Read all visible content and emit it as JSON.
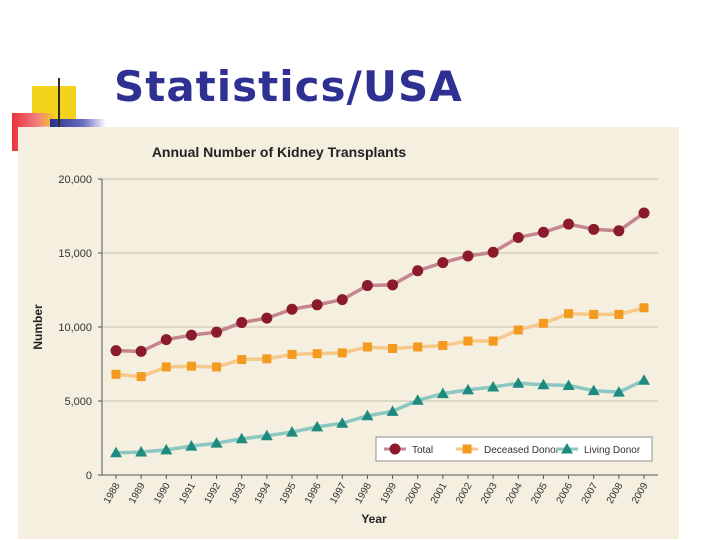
{
  "slide": {
    "title": "Statistics/USA"
  },
  "colors": {
    "title": "#2e3192",
    "panel": "#f4efdf",
    "total": "#8b1a2b",
    "total_line": "#c58590",
    "deceased": "#f39a1f",
    "deceased_line": "#f6c98a",
    "living": "#1e8a80",
    "living_line": "#8cc7c1"
  },
  "chart_data": {
    "type": "line",
    "title": "Annual Number of Kidney Transplants",
    "xlabel": "Year",
    "ylabel": "Number",
    "ylim": [
      0,
      20000
    ],
    "yticks": [
      0,
      5000,
      10000,
      15000,
      20000
    ],
    "ytick_labels": [
      "0",
      "5,000",
      "10,000",
      "15,000",
      "20,000"
    ],
    "legend_position": "bottom-right",
    "categories": [
      "1988",
      "1989",
      "1990",
      "1991",
      "1992",
      "1993",
      "1994",
      "1995",
      "1996",
      "1997",
      "1998",
      "1999",
      "2000",
      "2001",
      "2002",
      "2003",
      "2004",
      "2005",
      "2006",
      "2007",
      "2008",
      "2009"
    ],
    "series": [
      {
        "name": "Total",
        "marker": "circle",
        "values": [
          8400,
          8350,
          9150,
          9450,
          9650,
          10300,
          10600,
          11200,
          11500,
          11850,
          12800,
          12850,
          13800,
          14350,
          14800,
          15050,
          16050,
          16400,
          16950,
          16600,
          16500,
          17700
        ]
      },
      {
        "name": "Deceased Donor",
        "marker": "square",
        "values": [
          6800,
          6650,
          7300,
          7350,
          7300,
          7800,
          7850,
          8150,
          8200,
          8250,
          8650,
          8550,
          8650,
          8750,
          9050,
          9050,
          9800,
          10250,
          10900,
          10850,
          10850,
          11300
        ]
      },
      {
        "name": "Living Donor",
        "marker": "triangle",
        "values": [
          1500,
          1550,
          1700,
          1950,
          2150,
          2450,
          2650,
          2900,
          3250,
          3500,
          4000,
          4300,
          5050,
          5500,
          5750,
          5950,
          6200,
          6100,
          6050,
          5700,
          5600,
          6400
        ]
      }
    ]
  }
}
